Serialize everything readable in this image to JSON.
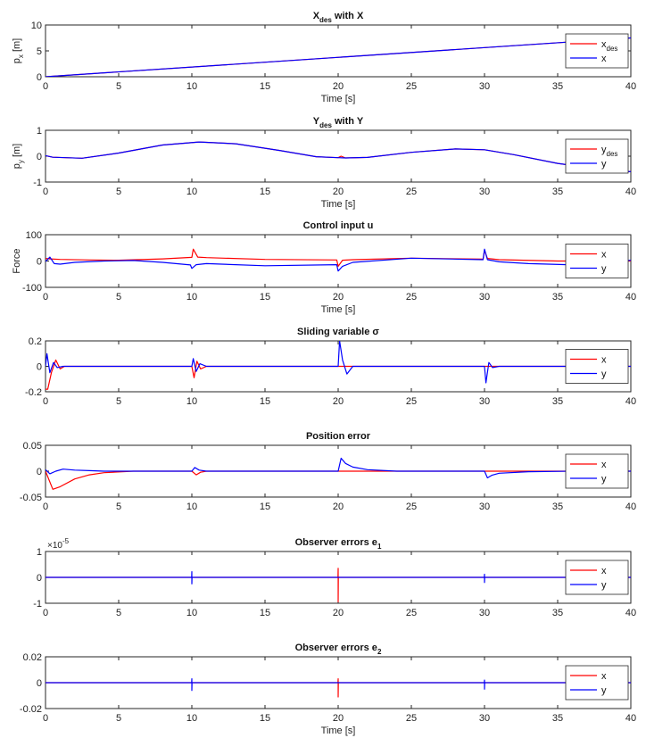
{
  "chart_data": [
    {
      "type": "line",
      "title": "X",
      "title_subscript": "des",
      "title_suffix": " with X",
      "xlabel": "Time [s]",
      "ylabel": "p",
      "ylabel_subscript": "x",
      "ylabel_suffix": " [m]",
      "xlim": [
        0,
        40
      ],
      "ylim": [
        0,
        10
      ],
      "xticks": [
        "0",
        "5",
        "10",
        "15",
        "20",
        "25",
        "30",
        "35",
        "40"
      ],
      "yticks": [
        "0",
        "5",
        "10"
      ],
      "yticks_values": [
        0,
        5,
        10
      ],
      "legend_position": "right",
      "series": [
        {
          "name": "x",
          "name_subscript": "des",
          "color": "#ff0000",
          "x": [
            0,
            40
          ],
          "y": [
            0,
            7.5
          ]
        },
        {
          "name": "x",
          "color": "#0000ff",
          "x": [
            0,
            40
          ],
          "y": [
            0,
            7.5
          ]
        }
      ]
    },
    {
      "type": "line",
      "title": "Y",
      "title_subscript": "des",
      "title_suffix": " with Y",
      "xlabel": "Time [s]",
      "ylabel": "p",
      "ylabel_subscript": "y",
      "ylabel_suffix": " [m]",
      "xlim": [
        0,
        40
      ],
      "ylim": [
        -1,
        1
      ],
      "xticks": [
        "0",
        "5",
        "10",
        "15",
        "20",
        "25",
        "30",
        "35",
        "40"
      ],
      "yticks": [
        "-1",
        "0",
        "1"
      ],
      "yticks_values": [
        -1,
        0,
        1
      ],
      "legend_position": "right",
      "series": [
        {
          "name": "y",
          "name_subscript": "des",
          "color": "#ff0000",
          "x": [
            0,
            0.5,
            2.5,
            5,
            8,
            10.5,
            13,
            16,
            18.5,
            20,
            20.2,
            20.5,
            22,
            25,
            28,
            30,
            32,
            35,
            38,
            40
          ],
          "y": [
            0.02,
            -0.04,
            -0.08,
            0.12,
            0.43,
            0.55,
            0.48,
            0.22,
            -0.02,
            -0.06,
            0.0,
            -0.07,
            -0.05,
            0.15,
            0.28,
            0.25,
            0.06,
            -0.28,
            -0.52,
            -0.6
          ]
        },
        {
          "name": "y",
          "color": "#0000ff",
          "x": [
            0,
            0.5,
            2.5,
            5,
            8,
            10.5,
            13,
            16,
            18.5,
            20,
            20.5,
            22,
            25,
            28,
            30,
            32,
            35,
            38,
            40
          ],
          "y": [
            0.02,
            -0.04,
            -0.08,
            0.12,
            0.43,
            0.55,
            0.48,
            0.22,
            -0.02,
            -0.06,
            -0.07,
            -0.05,
            0.15,
            0.28,
            0.25,
            0.06,
            -0.28,
            -0.52,
            -0.6
          ]
        }
      ]
    },
    {
      "type": "line",
      "title": "Control input u",
      "xlabel": "Time [s]",
      "ylabel": "Force",
      "xlim": [
        0,
        40
      ],
      "ylim": [
        -100,
        100
      ],
      "xticks": [
        "0",
        "5",
        "10",
        "15",
        "20",
        "25",
        "30",
        "35",
        "40"
      ],
      "yticks": [
        "-100",
        "0",
        "100"
      ],
      "yticks_values": [
        -100,
        0,
        100
      ],
      "legend_position": "right",
      "series": [
        {
          "name": "x",
          "color": "#ff0000",
          "x": [
            0,
            0.3,
            1,
            3,
            5,
            8,
            10,
            10.1,
            10.4,
            11,
            15,
            19.9,
            20,
            20.3,
            21,
            25,
            29.9,
            30,
            30.2,
            31,
            35,
            40
          ],
          "y": [
            10,
            8,
            6,
            4,
            3,
            8,
            14,
            45,
            15,
            13,
            6,
            4,
            -20,
            3,
            5,
            11,
            7,
            40,
            10,
            5,
            0,
            0
          ]
        },
        {
          "name": "y",
          "color": "#0000ff",
          "x": [
            0,
            0.3,
            0.6,
            1,
            2,
            4,
            6,
            8,
            9.9,
            10,
            10.3,
            11,
            15,
            19.9,
            20,
            20.3,
            21,
            25,
            29.9,
            30,
            30.2,
            31,
            33,
            37,
            40
          ],
          "y": [
            -2,
            15,
            -10,
            -12,
            -5,
            0,
            2,
            -5,
            -15,
            -28,
            -14,
            -10,
            -18,
            -14,
            -38,
            -20,
            -5,
            11,
            5,
            45,
            5,
            -3,
            -10,
            -16,
            3
          ]
        }
      ]
    },
    {
      "type": "line",
      "title": "Sliding variable σ",
      "xlabel": "",
      "ylabel": "",
      "xlim": [
        0,
        40
      ],
      "ylim": [
        -0.2,
        0.2
      ],
      "xticks": [
        "0",
        "5",
        "10",
        "15",
        "20",
        "25",
        "30",
        "35",
        "40"
      ],
      "yticks": [
        "-0.2",
        "0",
        "0.2"
      ],
      "yticks_values": [
        -0.2,
        0,
        0.2
      ],
      "legend_position": "right",
      "series": [
        {
          "name": "x",
          "color": "#ff0000",
          "x": [
            0,
            0.15,
            0.4,
            0.7,
            1.0,
            1.3,
            10,
            10.15,
            10.35,
            10.6,
            11,
            40
          ],
          "y": [
            -0.18,
            -0.18,
            -0.05,
            0.05,
            -0.02,
            0,
            0,
            -0.09,
            0.04,
            -0.02,
            0,
            0
          ]
        },
        {
          "name": "y",
          "color": "#0000ff",
          "x": [
            0,
            0.1,
            0.3,
            0.55,
            0.8,
            1.2,
            10,
            10.1,
            10.3,
            10.55,
            11,
            20,
            20.1,
            20.3,
            20.6,
            21,
            30,
            30.1,
            30.3,
            30.55,
            31,
            40
          ],
          "y": [
            0,
            0.1,
            -0.05,
            0.03,
            -0.01,
            0,
            0,
            0.06,
            -0.04,
            0.02,
            0,
            0,
            0.2,
            0.05,
            -0.06,
            0,
            0,
            -0.13,
            0.03,
            -0.01,
            0,
            0
          ]
        }
      ]
    },
    {
      "type": "line",
      "title": "Position error",
      "xlabel": "",
      "ylabel": "",
      "xlim": [
        0,
        40
      ],
      "ylim": [
        -0.05,
        0.05
      ],
      "xticks": [
        "0",
        "5",
        "10",
        "15",
        "20",
        "25",
        "30",
        "35",
        "40"
      ],
      "yticks": [
        "-0.05",
        "0",
        "0.05"
      ],
      "yticks_values": [
        -0.05,
        0,
        0.05
      ],
      "legend_position": "right",
      "series": [
        {
          "name": "x",
          "color": "#ff0000",
          "x": [
            0,
            0.5,
            1,
            2,
            3,
            4,
            6,
            10,
            10.3,
            10.6,
            11,
            20,
            40
          ],
          "y": [
            0,
            -0.035,
            -0.03,
            -0.015,
            -0.007,
            -0.003,
            0,
            0,
            -0.007,
            -0.002,
            0,
            0,
            0
          ]
        },
        {
          "name": "y",
          "color": "#0000ff",
          "x": [
            0,
            0.3,
            0.7,
            1.2,
            2,
            3,
            4,
            10,
            10.2,
            10.5,
            11,
            20,
            20.2,
            20.5,
            21,
            22,
            24,
            30,
            30.2,
            30.5,
            31,
            33,
            36,
            40
          ],
          "y": [
            0.003,
            -0.005,
            0.0,
            0.004,
            0.002,
            0.001,
            0,
            0,
            0.007,
            0.002,
            0,
            0,
            0.025,
            0.015,
            0.008,
            0.003,
            0,
            0,
            -0.013,
            -0.008,
            -0.004,
            -0.001,
            0,
            0
          ]
        }
      ]
    },
    {
      "type": "line",
      "title": "Observer errors e",
      "title_subscript": "1",
      "xlabel": "",
      "ylabel": "",
      "exponent_label": "×10",
      "exponent_power": "-5",
      "xlim": [
        0,
        40
      ],
      "ylim": [
        -1,
        1
      ],
      "xticks": [
        "0",
        "5",
        "10",
        "15",
        "20",
        "25",
        "30",
        "35",
        "40"
      ],
      "yticks": [
        "-1",
        "0",
        "1"
      ],
      "yticks_values": [
        -1,
        0,
        1
      ],
      "legend_position": "right",
      "series": [
        {
          "name": "x",
          "color": "#ff0000",
          "x": [
            0,
            19.99,
            20,
            20,
            20.01,
            40
          ],
          "y": [
            0,
            0,
            0.35,
            -0.95,
            0,
            0
          ]
        },
        {
          "name": "y",
          "color": "#0000ff",
          "x": [
            0,
            9.99,
            10,
            10,
            10.01,
            29.99,
            30,
            30,
            30.01,
            40
          ],
          "y": [
            0,
            0,
            0.22,
            -0.25,
            0,
            0,
            0.12,
            -0.2,
            0,
            0
          ]
        }
      ]
    },
    {
      "type": "line",
      "title": "Observer errors e",
      "title_subscript": "2",
      "xlabel": "Time [s]",
      "ylabel": "",
      "xlim": [
        0,
        40
      ],
      "ylim": [
        -0.02,
        0.02
      ],
      "xticks": [
        "0",
        "5",
        "10",
        "15",
        "20",
        "25",
        "30",
        "35",
        "40"
      ],
      "yticks": [
        "-0.02",
        "0",
        "0.02"
      ],
      "yticks_values": [
        -0.02,
        0,
        0.02
      ],
      "legend_position": "right",
      "series": [
        {
          "name": "x",
          "color": "#ff0000",
          "x": [
            0,
            19.99,
            20,
            20,
            20.01,
            40
          ],
          "y": [
            0,
            0,
            0.003,
            -0.011,
            0,
            0
          ]
        },
        {
          "name": "y",
          "color": "#0000ff",
          "x": [
            0,
            9.99,
            10,
            10,
            10.01,
            29.99,
            30,
            30,
            30.01,
            40
          ],
          "y": [
            0,
            0,
            0.003,
            -0.006,
            0,
            0,
            0.002,
            -0.005,
            0,
            0
          ]
        }
      ]
    }
  ]
}
